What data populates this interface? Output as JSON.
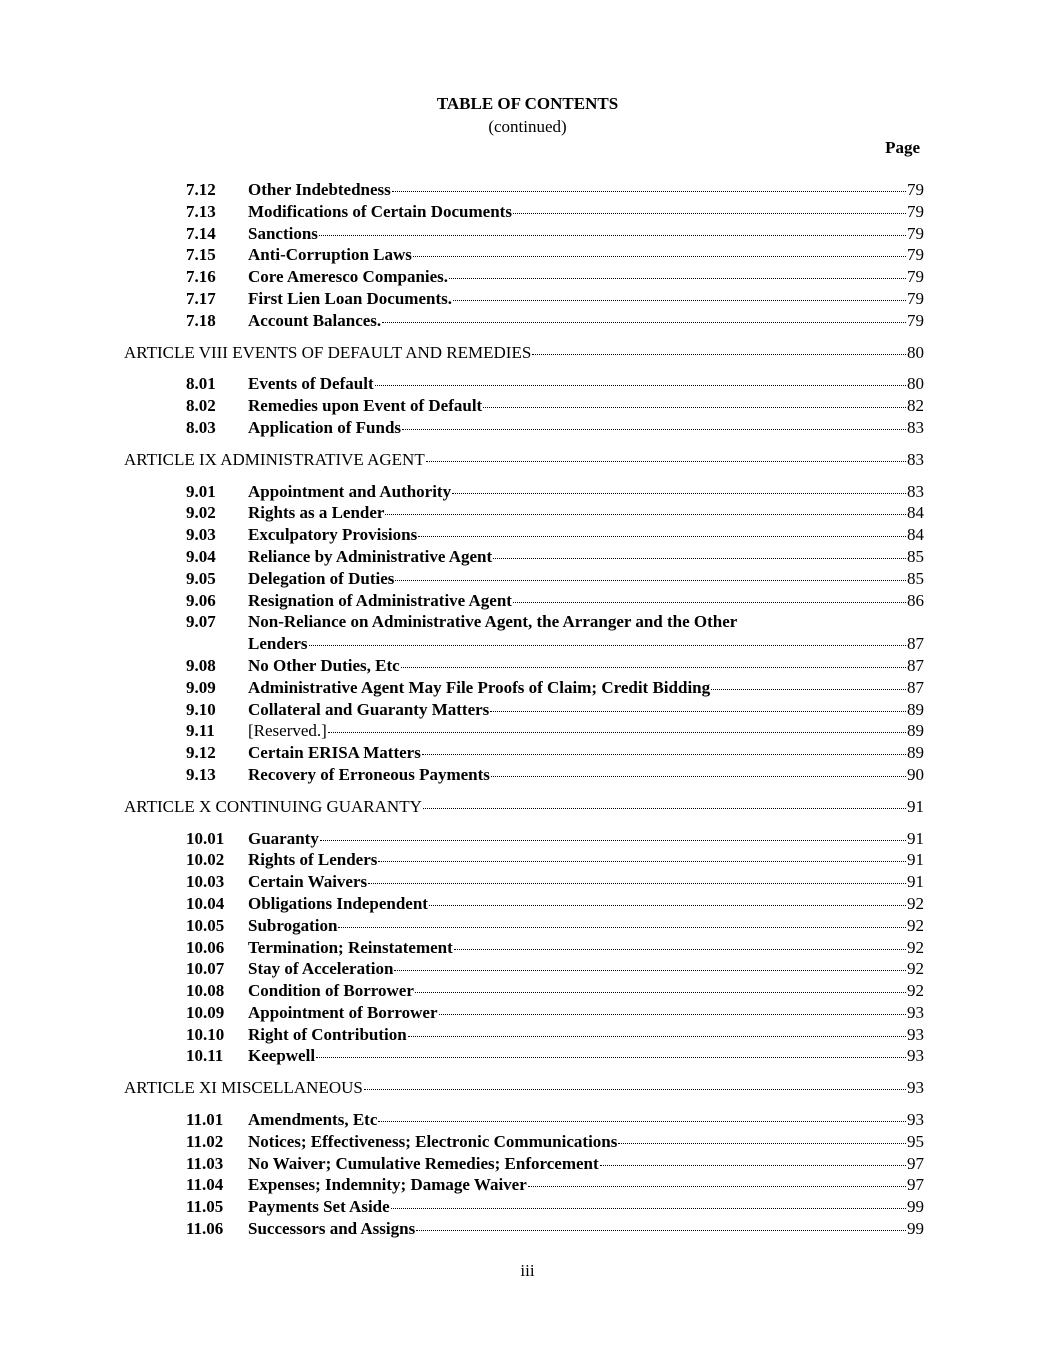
{
  "header": {
    "title": "TABLE OF CONTENTS",
    "subtitle": "(continued)",
    "page_label": "Page"
  },
  "entries": [
    {
      "type": "section",
      "num": "7.12",
      "title": "Other Indebtedness",
      "page": "79"
    },
    {
      "type": "section",
      "num": "7.13",
      "title": "Modifications of Certain Documents",
      "page": "79"
    },
    {
      "type": "section",
      "num": "7.14",
      "title": "Sanctions",
      "page": "79"
    },
    {
      "type": "section",
      "num": "7.15",
      "title": "Anti-Corruption Laws",
      "page": "79"
    },
    {
      "type": "section",
      "num": "7.16",
      "title": "Core Ameresco Companies.",
      "page": "79"
    },
    {
      "type": "section",
      "num": "7.17",
      "title": "First Lien Loan Documents.",
      "page": "79"
    },
    {
      "type": "section",
      "num": "7.18",
      "title": "Account Balances.",
      "page": "79"
    },
    {
      "type": "article",
      "title": "ARTICLE VIII EVENTS OF DEFAULT AND REMEDIES",
      "page": "80"
    },
    {
      "type": "section",
      "num": "8.01",
      "title": "Events of Default",
      "page": "80"
    },
    {
      "type": "section",
      "num": "8.02",
      "title": "Remedies upon Event of Default",
      "page": "82"
    },
    {
      "type": "section",
      "num": "8.03",
      "title": "Application of Funds",
      "page": "83"
    },
    {
      "type": "article",
      "title": "ARTICLE IX ADMINISTRATIVE AGENT",
      "page": "83"
    },
    {
      "type": "section",
      "num": "9.01",
      "title": "Appointment and Authority",
      "page": "83"
    },
    {
      "type": "section",
      "num": "9.02",
      "title": "Rights as a Lender",
      "page": "84"
    },
    {
      "type": "section",
      "num": "9.03",
      "title": "Exculpatory Provisions",
      "page": "84"
    },
    {
      "type": "section",
      "num": "9.04",
      "title": "Reliance by Administrative Agent",
      "page": "85"
    },
    {
      "type": "section",
      "num": "9.05",
      "title": "Delegation of Duties",
      "page": "85"
    },
    {
      "type": "section",
      "num": "9.06",
      "title": "Resignation of Administrative Agent",
      "page": "86"
    },
    {
      "type": "section",
      "num": "9.07",
      "title": "Non-Reliance on Administrative Agent, the Arranger and the Other",
      "title_continued": "Lenders",
      "page": "87"
    },
    {
      "type": "section",
      "num": "9.08",
      "title": "No Other Duties, Etc",
      "page": "87"
    },
    {
      "type": "section",
      "num": "9.09",
      "title": "Administrative Agent May File Proofs of Claim; Credit Bidding",
      "page": "87"
    },
    {
      "type": "section",
      "num": "9.10",
      "title": "Collateral and Guaranty Matters",
      "page": "89"
    },
    {
      "type": "section",
      "num": "9.11",
      "title": "[Reserved.]",
      "page": "89",
      "plain": true
    },
    {
      "type": "section",
      "num": "9.12",
      "title": "Certain ERISA Matters",
      "page": "89"
    },
    {
      "type": "section",
      "num": "9.13",
      "title": "Recovery of Erroneous Payments",
      "page": "90"
    },
    {
      "type": "article",
      "title": "ARTICLE X CONTINUING GUARANTY",
      "page": "91"
    },
    {
      "type": "section",
      "num": "10.01",
      "title": "Guaranty",
      "page": "91"
    },
    {
      "type": "section",
      "num": "10.02",
      "title": "Rights of Lenders",
      "page": "91"
    },
    {
      "type": "section",
      "num": "10.03",
      "title": "Certain Waivers",
      "page": "91"
    },
    {
      "type": "section",
      "num": "10.04",
      "title": "Obligations Independent",
      "page": "92"
    },
    {
      "type": "section",
      "num": "10.05",
      "title": "Subrogation",
      "page": "92"
    },
    {
      "type": "section",
      "num": "10.06",
      "title": "Termination; Reinstatement",
      "page": "92"
    },
    {
      "type": "section",
      "num": "10.07",
      "title": "Stay of Acceleration",
      "page": "92"
    },
    {
      "type": "section",
      "num": "10.08",
      "title": "Condition of Borrower",
      "page": "92"
    },
    {
      "type": "section",
      "num": "10.09",
      "title": "Appointment of Borrower",
      "page": "93"
    },
    {
      "type": "section",
      "num": "10.10",
      "title": "Right of Contribution",
      "page": "93"
    },
    {
      "type": "section",
      "num": "10.11",
      "title": "Keepwell",
      "page": "93"
    },
    {
      "type": "article",
      "title": "ARTICLE XI MISCELLANEOUS",
      "page": "93"
    },
    {
      "type": "section",
      "num": "11.01",
      "title": "Amendments, Etc",
      "page": "93"
    },
    {
      "type": "section",
      "num": "11.02",
      "title": "Notices; Effectiveness; Electronic Communications",
      "page": "95"
    },
    {
      "type": "section",
      "num": "11.03",
      "title": "No Waiver; Cumulative Remedies; Enforcement",
      "page": "97"
    },
    {
      "type": "section",
      "num": "11.04",
      "title": "Expenses; Indemnity; Damage Waiver",
      "page": "97"
    },
    {
      "type": "section",
      "num": "11.05",
      "title": "Payments Set Aside",
      "page": "99"
    },
    {
      "type": "section",
      "num": "11.06",
      "title": "Successors and Assigns",
      "page": "99"
    }
  ],
  "footer": {
    "page_number": "iii"
  }
}
